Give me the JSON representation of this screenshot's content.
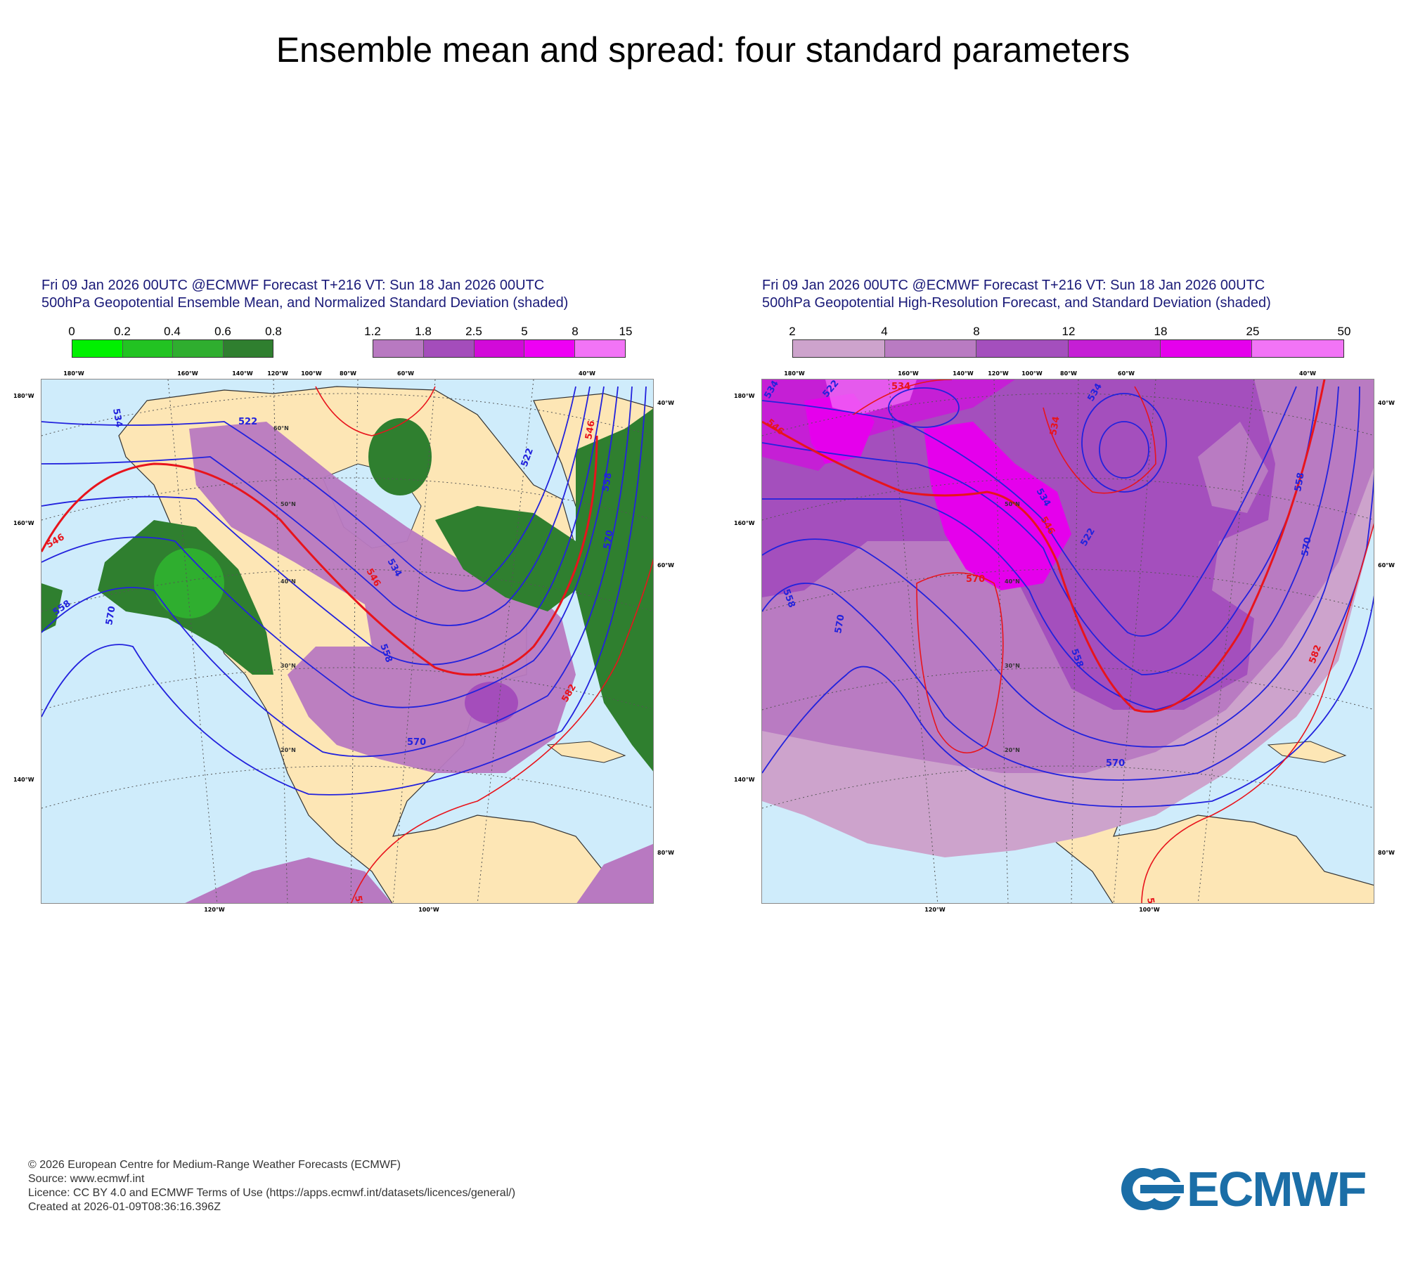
{
  "title": "Ensemble mean and spread: four standard parameters",
  "colors": {
    "ocean": "#cfecfb",
    "land": "#fde6b5",
    "left_green": [
      "#00f000",
      "#22c322",
      "#2fae2f",
      "#2e9a2e",
      "#2f7f2f"
    ],
    "left_purple": [
      "#b879c1",
      "#a44dbb",
      "#d20ad9",
      "#ee00f4",
      "#f274f6"
    ],
    "right_shades": [
      "#cda3cc",
      "#b97bc2",
      "#a44fbd",
      "#c51fd5",
      "#e500ec",
      "#f274f6"
    ],
    "contour_blue": "#2222dd",
    "contour_red": "#e8141c"
  },
  "panels": [
    {
      "id": "left",
      "title_line1": "Fri 09 Jan 2026 00UTC @ECMWF Forecast T+216 VT: Sun 18 Jan 2026 00UTC",
      "title_line2": "500hPa Geopotential Ensemble Mean, and Normalized Standard Deviation (shaded)",
      "colorbar_green_ticks": [
        "0",
        "0.2",
        "0.4",
        "0.6",
        "0.8"
      ],
      "colorbar_purple_ticks": [
        "1.2",
        "1.8",
        "2.5",
        "5",
        "8",
        "15"
      ],
      "contour_labels": [
        "522",
        "534",
        "546",
        "558",
        "570",
        "582"
      ]
    },
    {
      "id": "right",
      "title_line1": "Fri 09 Jan 2026 00UTC @ECMWF Forecast T+216 VT: Sun 18 Jan 2026 00UTC",
      "title_line2": "500hPa Geopotential High-Resolution Forecast, and Standard Deviation (shaded)",
      "colorbar_ticks": [
        "2",
        "4",
        "8",
        "12",
        "18",
        "25",
        "50"
      ],
      "contour_labels": [
        "522",
        "534",
        "546",
        "558",
        "570",
        "582"
      ]
    }
  ],
  "map_labels": {
    "lon_top": [
      "180°W",
      "160°W",
      "140°W",
      "120°W",
      "100°W",
      "80°W",
      "60°W",
      "40°W"
    ],
    "lon_bottom": [
      "120°W",
      "100°W"
    ],
    "lat_left": [
      "180°W",
      "160°W",
      "140°W"
    ],
    "lat_right": [
      "40°W",
      "60°W",
      "80°W"
    ],
    "lat_circles": [
      "60°N",
      "50°N",
      "40°N",
      "30°N",
      "20°N"
    ]
  },
  "footer": {
    "line1": "© 2026 European Centre for Medium-Range Weather Forecasts (ECMWF)",
    "line2": "Source: www.ecmwf.int",
    "line3": "Licence: CC BY 4.0 and ECMWF Terms of Use (https://apps.ecmwf.int/datasets/licences/general/)",
    "line4": "Created at 2026-01-09T08:36:16.396Z"
  },
  "logo_text": "ECMWF"
}
